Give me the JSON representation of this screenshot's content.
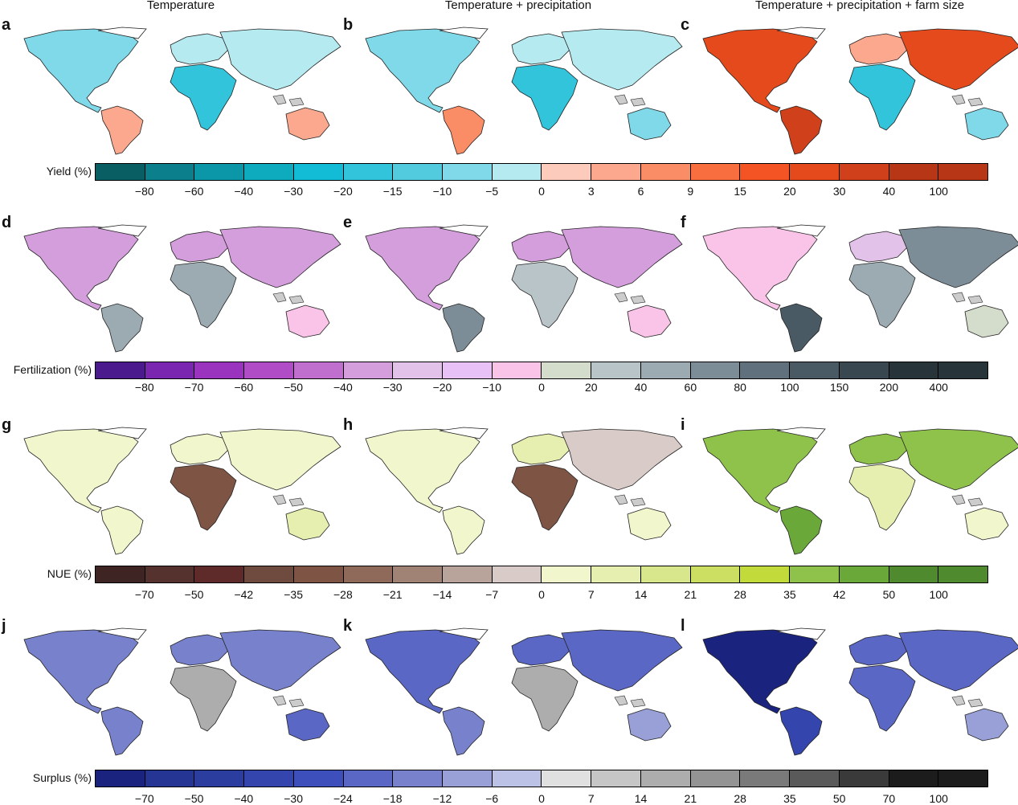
{
  "columns": [
    "Temperature",
    "Temperature + precipitation",
    "Temperature + precipitation + farm size"
  ],
  "rows": [
    {
      "panels": [
        "a",
        "b",
        "c"
      ],
      "legend": {
        "title": "Yield (%)",
        "ticks": [
          "−80",
          "−60",
          "−40",
          "−30",
          "−20",
          "−15",
          "−10",
          "−5",
          "0",
          "3",
          "6",
          "9",
          "15",
          "20",
          "30",
          "40",
          "100"
        ],
        "colors": [
          "#085e63",
          "#0b7f8c",
          "#0c97a8",
          "#0eaabd",
          "#12bcd6",
          "#31c4da",
          "#52cbdf",
          "#7fd9e8",
          "#b4eaf0",
          "#fccbbb",
          "#fca88e",
          "#fb8d66",
          "#f96e3f",
          "#f45424",
          "#e44a1c",
          "#d0401a",
          "#b73616"
        ],
        "map_colors": [
          {
            "na": "#7fd9e8",
            "sa": "#fca88e",
            "eu": "#b4eaf0",
            "af": "#31c4da",
            "as": "#b4eaf0",
            "au": "#fca88e"
          },
          {
            "na": "#7fd9e8",
            "sa": "#fb8d66",
            "eu": "#b4eaf0",
            "af": "#31c4da",
            "as": "#b4eaf0",
            "au": "#7fd9e8"
          },
          {
            "na": "#e44a1c",
            "sa": "#d0401a",
            "eu": "#fca88e",
            "af": "#31c4da",
            "as": "#e44a1c",
            "au": "#7fd9e8"
          }
        ]
      }
    },
    {
      "panels": [
        "d",
        "e",
        "f"
      ],
      "legend": {
        "title": "Fertilization (%)",
        "ticks": [
          "−80",
          "−70",
          "−60",
          "−50",
          "−40",
          "−30",
          "−20",
          "−10",
          "0",
          "20",
          "40",
          "60",
          "80",
          "100",
          "150",
          "200",
          "400"
        ],
        "colors": [
          "#4b1a8c",
          "#7a26b0",
          "#9a33be",
          "#b04cc6",
          "#c16fce",
          "#d49ddc",
          "#e2c2e8",
          "#e8c2f6",
          "#f9c4e8",
          "#d4dccb",
          "#b9c4c9",
          "#9caab2",
          "#7d8d98",
          "#60717d",
          "#4a5a64",
          "#394850",
          "#27353b"
        ],
        "map_colors": [
          {
            "na": "#d49ddc",
            "sa": "#9caab2",
            "eu": "#d49ddc",
            "af": "#9caab2",
            "as": "#d49ddc",
            "au": "#f9c4e8"
          },
          {
            "na": "#d49ddc",
            "sa": "#7d8d98",
            "eu": "#d49ddc",
            "af": "#b9c4c9",
            "as": "#d49ddc",
            "au": "#f9c4e8"
          },
          {
            "na": "#f9c4e8",
            "sa": "#4a5a64",
            "eu": "#e2c2e8",
            "af": "#9caab2",
            "as": "#7d8d98",
            "au": "#d4dccb"
          }
        ]
      }
    },
    {
      "panels": [
        "g",
        "h",
        "i"
      ],
      "legend": {
        "title": "NUE (%)",
        "ticks": [
          "−70",
          "−50",
          "−42",
          "−35",
          "−28",
          "−21",
          "−14",
          "−7",
          "0",
          "7",
          "14",
          "21",
          "28",
          "35",
          "42",
          "50",
          "100"
        ],
        "colors": [
          "#3e2423",
          "#55322e",
          "#5e2a2a",
          "#6f4a3e",
          "#7e5444",
          "#8f6a5a",
          "#a18376",
          "#b8a49a",
          "#d9ccc8",
          "#f2f6cc",
          "#e6efaf",
          "#d8e78b",
          "#ccdf62",
          "#c3db3a",
          "#8fc24a",
          "#6aa83a",
          "#4f8b2e"
        ],
        "map_colors": [
          {
            "na": "#f2f6cc",
            "sa": "#f2f6cc",
            "eu": "#f2f6cc",
            "af": "#7e5444",
            "as": "#f2f6cc",
            "au": "#e6efaf"
          },
          {
            "na": "#f2f6cc",
            "sa": "#f2f6cc",
            "eu": "#e6efaf",
            "af": "#7e5444",
            "as": "#d9ccc8",
            "au": "#f2f6cc"
          },
          {
            "na": "#8fc24a",
            "sa": "#6aa83a",
            "eu": "#8fc24a",
            "af": "#e6efaf",
            "as": "#8fc24a",
            "au": "#f2f6cc"
          }
        ]
      }
    },
    {
      "panels": [
        "j",
        "k",
        "l"
      ],
      "legend": {
        "title": "Surplus (%)",
        "ticks": [
          "−70",
          "−50",
          "−40",
          "−30",
          "−24",
          "−18",
          "−12",
          "−6",
          "0",
          "7",
          "14",
          "21",
          "28",
          "35",
          "50",
          "70",
          "100"
        ],
        "colors": [
          "#1a237e",
          "#253593",
          "#2c3da0",
          "#3446ad",
          "#3d4fbb",
          "#5a67c4",
          "#7781cc",
          "#98a0d7",
          "#bcc1e6",
          "#e0e0e0",
          "#c6c6c6",
          "#adadad",
          "#949494",
          "#7a7a7a",
          "#5a5a5a",
          "#3a3a3a",
          "#1c1c1c"
        ],
        "map_colors": [
          {
            "na": "#7781cc",
            "sa": "#7781cc",
            "eu": "#7781cc",
            "af": "#adadad",
            "as": "#7781cc",
            "au": "#5a67c4"
          },
          {
            "na": "#5a67c4",
            "sa": "#7781cc",
            "eu": "#5a67c4",
            "af": "#adadad",
            "as": "#5a67c4",
            "au": "#98a0d7"
          },
          {
            "na": "#1a237e",
            "sa": "#3446ad",
            "eu": "#5a67c4",
            "af": "#5a67c4",
            "as": "#5a67c4",
            "au": "#98a0d7"
          }
        ]
      }
    }
  ]
}
